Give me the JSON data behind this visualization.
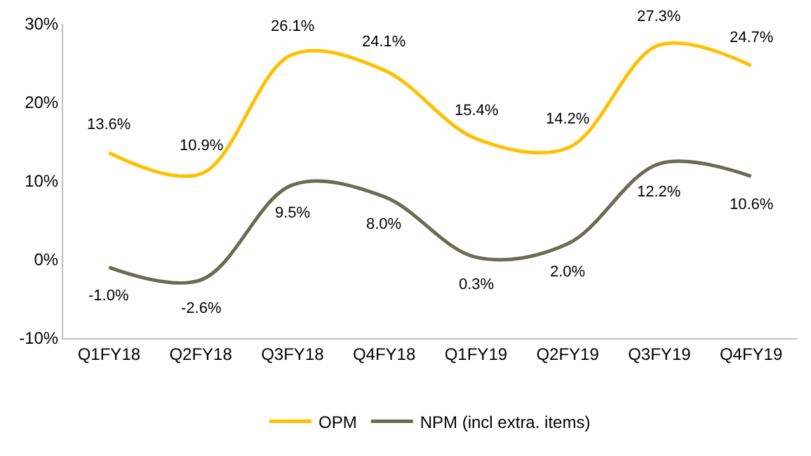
{
  "chart_data": {
    "type": "line",
    "categories": [
      "Q1FY18",
      "Q2FY18",
      "Q3FY18",
      "Q4FY18",
      "Q1FY19",
      "Q2FY19",
      "Q3FY19",
      "Q4FY19"
    ],
    "series": [
      {
        "name": "OPM",
        "color": "#ffc000",
        "values": [
          13.6,
          10.9,
          26.1,
          24.1,
          15.4,
          14.2,
          27.3,
          24.7
        ],
        "value_labels": [
          "13.6%",
          "10.9%",
          "26.1%",
          "24.1%",
          "15.4%",
          "14.2%",
          "27.3%",
          "24.7%"
        ]
      },
      {
        "name": "NPM (incl extra. items)",
        "color": "#6b6b50",
        "values": [
          -1.0,
          -2.6,
          9.5,
          8.0,
          0.3,
          2.0,
          12.2,
          10.6
        ],
        "value_labels": [
          "-1.0%",
          "-2.6%",
          "9.5%",
          "8.0%",
          "0.3%",
          "2.0%",
          "12.2%",
          "10.6%"
        ]
      }
    ],
    "ylim": [
      -10,
      30
    ],
    "yticks": [
      {
        "value": -10,
        "label": "-10%"
      },
      {
        "value": 0,
        "label": "0%"
      },
      {
        "value": 10,
        "label": "10%"
      },
      {
        "value": 20,
        "label": "20%"
      },
      {
        "value": 30,
        "label": "30%"
      }
    ],
    "legend": "bottom",
    "marker": "none",
    "line_style": "solid"
  }
}
